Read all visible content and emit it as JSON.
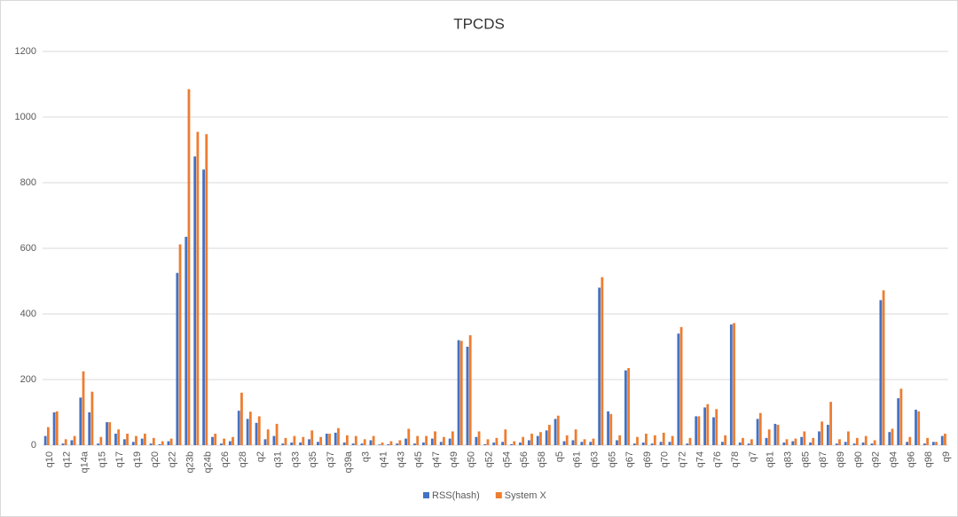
{
  "chart_data": {
    "type": "bar",
    "title": "TPCDS",
    "categories": [
      "q10",
      null,
      "q12",
      null,
      "q14a",
      null,
      "q15",
      null,
      "q17",
      null,
      "q19",
      null,
      "q20",
      null,
      "q22",
      null,
      "q23b",
      null,
      "q24b",
      null,
      "q26",
      null,
      "q28",
      null,
      "q2",
      null,
      "q31",
      null,
      "q33",
      null,
      "q35",
      null,
      "q37",
      null,
      "q39a",
      null,
      "q3",
      null,
      "q41",
      null,
      "q43",
      null,
      "q45",
      null,
      "q47",
      null,
      "q49",
      null,
      "q50",
      null,
      "q52",
      null,
      "q54",
      null,
      "q56",
      null,
      "q58",
      null,
      "q5",
      null,
      "q61",
      null,
      "q63",
      null,
      "q65",
      null,
      "q67",
      null,
      "q69",
      null,
      "q70",
      null,
      "q72",
      null,
      "q74",
      null,
      "q76",
      null,
      "q78",
      null,
      "q7",
      null,
      "q81",
      null,
      "q83",
      null,
      "q85",
      null,
      "q87",
      null,
      "q89",
      null,
      "q90",
      null,
      "q92",
      null,
      "q94",
      null,
      "q96",
      null,
      "q98",
      null,
      "q9"
    ],
    "series": [
      {
        "name": "RSS(hash)",
        "color": "#4472c4",
        "values": [
          28,
          100,
          5,
          15,
          145,
          100,
          5,
          70,
          35,
          18,
          10,
          20,
          5,
          3,
          12,
          525,
          635,
          880,
          840,
          25,
          5,
          12,
          105,
          80,
          68,
          18,
          28,
          5,
          8,
          8,
          18,
          10,
          35,
          38,
          8,
          5,
          5,
          15,
          2,
          3,
          5,
          20,
          5,
          8,
          20,
          10,
          20,
          320,
          300,
          25,
          3,
          8,
          10,
          3,
          8,
          15,
          28,
          45,
          80,
          12,
          15,
          10,
          10,
          480,
          103,
          15,
          228,
          5,
          8,
          5,
          10,
          10,
          340,
          5,
          88,
          115,
          85,
          10,
          368,
          8,
          5,
          80,
          22,
          65,
          8,
          12,
          25,
          8,
          42,
          62,
          5,
          10,
          5,
          8,
          5,
          442,
          40,
          143,
          10,
          108,
          5,
          10,
          28
        ]
      },
      {
        "name": "System X",
        "color": "#ed7d31",
        "values": [
          55,
          103,
          18,
          28,
          225,
          163,
          25,
          70,
          48,
          35,
          28,
          35,
          22,
          12,
          20,
          612,
          1085,
          955,
          948,
          35,
          20,
          25,
          160,
          102,
          88,
          48,
          65,
          22,
          28,
          25,
          45,
          25,
          35,
          52,
          30,
          28,
          18,
          28,
          8,
          12,
          15,
          50,
          28,
          28,
          42,
          25,
          42,
          318,
          335,
          42,
          18,
          22,
          48,
          12,
          25,
          35,
          40,
          62,
          90,
          30,
          48,
          18,
          20,
          512,
          95,
          30,
          235,
          25,
          35,
          30,
          38,
          28,
          360,
          22,
          88,
          125,
          110,
          30,
          372,
          22,
          18,
          98,
          48,
          62,
          18,
          20,
          42,
          22,
          72,
          132,
          18,
          42,
          22,
          28,
          15,
          472,
          50,
          172,
          25,
          103,
          22,
          10,
          35
        ]
      }
    ],
    "ylim": [
      0,
      1200
    ],
    "yticks": [
      0,
      200,
      400,
      600,
      800,
      1000,
      1200
    ],
    "grid": true,
    "legend": "bottom"
  }
}
